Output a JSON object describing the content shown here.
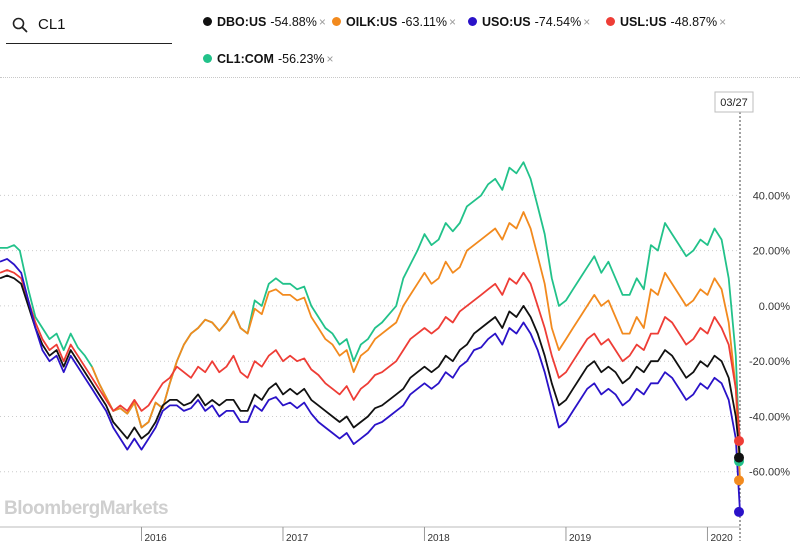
{
  "search": {
    "value": "CL1"
  },
  "legend": [
    {
      "ticker": "DBO:US",
      "change": "-54.88%",
      "close": "×",
      "color": "#111111"
    },
    {
      "ticker": "OILK:US",
      "change": "-63.11%",
      "close": "×",
      "color": "#f28a1e"
    },
    {
      "ticker": "USO:US",
      "change": "-74.54%",
      "close": "×",
      "color": "#2a12c8"
    },
    {
      "ticker": "USL:US",
      "change": "-48.87%",
      "close": "×",
      "color": "#ee3d36"
    },
    {
      "ticker": "CL1:COM",
      "change": "-56.23%",
      "close": "×",
      "color": "#22c28a"
    }
  ],
  "watermark": "BloombergMarkets",
  "chart_data": {
    "type": "line",
    "date_marker": "03/27",
    "ylim": [
      -80,
      68
    ],
    "yticks": [
      40,
      20,
      0,
      -20,
      -40,
      -60
    ],
    "ytick_labels": [
      "40.00%",
      "20.00%",
      "0.00%",
      "-20.00%",
      "-40.00%",
      "-60.00%"
    ],
    "xlim": [
      2015.0,
      2020.23
    ],
    "xticks": [
      2016,
      2017,
      2018,
      2019,
      2020
    ],
    "xtick_labels": [
      "2016",
      "2017",
      "2018",
      "2019",
      "2020"
    ],
    "grid": true,
    "series": [
      {
        "name": "CL1:COM",
        "color": "#22c28a",
        "final": -56.23,
        "x": [
          2015.0,
          2015.05,
          2015.1,
          2015.14,
          2015.2,
          2015.25,
          2015.3,
          2015.35,
          2015.4,
          2015.45,
          2015.5,
          2015.55,
          2015.6,
          2015.65,
          2015.7,
          2015.75,
          2015.8,
          2015.85,
          2015.9,
          2015.95,
          2016.0,
          2016.05,
          2016.1,
          2016.15,
          2016.2,
          2016.25,
          2016.3,
          2016.35,
          2016.4,
          2016.45,
          2016.5,
          2016.55,
          2016.6,
          2016.65,
          2016.7,
          2016.75,
          2016.8,
          2016.85,
          2016.9,
          2016.95,
          2017.0,
          2017.05,
          2017.1,
          2017.15,
          2017.2,
          2017.25,
          2017.3,
          2017.35,
          2017.4,
          2017.45,
          2017.5,
          2017.55,
          2017.6,
          2017.65,
          2017.7,
          2017.75,
          2017.8,
          2017.85,
          2017.9,
          2017.95,
          2018.0,
          2018.05,
          2018.1,
          2018.15,
          2018.2,
          2018.25,
          2018.3,
          2018.35,
          2018.4,
          2018.45,
          2018.5,
          2018.55,
          2018.6,
          2018.65,
          2018.7,
          2018.75,
          2018.8,
          2018.85,
          2018.9,
          2018.95,
          2019.0,
          2019.05,
          2019.1,
          2019.15,
          2019.2,
          2019.25,
          2019.3,
          2019.35,
          2019.4,
          2019.45,
          2019.5,
          2019.55,
          2019.6,
          2019.65,
          2019.7,
          2019.75,
          2019.8,
          2019.85,
          2019.9,
          2019.95,
          2020.0,
          2020.05,
          2020.1,
          2020.15,
          2020.2,
          2020.23
        ],
        "y": [
          21,
          21,
          22,
          20,
          6,
          -4,
          -8,
          -12,
          -10,
          -16,
          -10,
          -15,
          -18,
          -22,
          -28,
          -33,
          -38,
          -37,
          -39,
          -35,
          -44,
          -42,
          -35,
          -37,
          -28,
          -20,
          -14,
          -10,
          -8,
          -5,
          -6,
          -9,
          -6,
          -2,
          -8,
          -10,
          2,
          0,
          8,
          10,
          8,
          8,
          6,
          7,
          0,
          -4,
          -8,
          -10,
          -14,
          -12,
          -20,
          -14,
          -12,
          -8,
          -6,
          -3,
          0,
          10,
          15,
          20,
          26,
          22,
          24,
          30,
          27,
          30,
          36,
          38,
          40,
          44,
          46,
          42,
          50,
          48,
          52,
          46,
          36,
          26,
          10,
          0,
          2,
          6,
          10,
          14,
          18,
          12,
          16,
          10,
          4,
          4,
          10,
          6,
          22,
          20,
          30,
          26,
          22,
          18,
          20,
          24,
          22,
          28,
          24,
          10,
          -18,
          -56.23
        ]
      },
      {
        "name": "OILK:US",
        "color": "#f28a1e",
        "final": -63.11,
        "x": [
          2015.65,
          2015.7,
          2015.75,
          2015.8,
          2015.85,
          2015.9,
          2015.95,
          2016.0,
          2016.05,
          2016.1,
          2016.15,
          2016.2,
          2016.25,
          2016.3,
          2016.35,
          2016.4,
          2016.45,
          2016.5,
          2016.55,
          2016.6,
          2016.65,
          2016.7,
          2016.75,
          2016.8,
          2016.85,
          2016.9,
          2016.95,
          2017.0,
          2017.05,
          2017.1,
          2017.15,
          2017.2,
          2017.25,
          2017.3,
          2017.35,
          2017.4,
          2017.45,
          2017.5,
          2017.55,
          2017.6,
          2017.65,
          2017.7,
          2017.75,
          2017.8,
          2017.85,
          2017.9,
          2017.95,
          2018.0,
          2018.05,
          2018.1,
          2018.15,
          2018.2,
          2018.25,
          2018.3,
          2018.35,
          2018.4,
          2018.45,
          2018.5,
          2018.55,
          2018.6,
          2018.65,
          2018.7,
          2018.75,
          2018.8,
          2018.85,
          2018.9,
          2018.95,
          2019.0,
          2019.05,
          2019.1,
          2019.15,
          2019.2,
          2019.25,
          2019.3,
          2019.35,
          2019.4,
          2019.45,
          2019.5,
          2019.55,
          2019.6,
          2019.65,
          2019.7,
          2019.75,
          2019.8,
          2019.85,
          2019.9,
          2019.95,
          2020.0,
          2020.05,
          2020.1,
          2020.15,
          2020.2,
          2020.23
        ],
        "y": [
          -22,
          -28,
          -33,
          -38,
          -37,
          -39,
          -35,
          -44,
          -42,
          -35,
          -37,
          -28,
          -20,
          -14,
          -10,
          -8,
          -5,
          -6,
          -9,
          -6,
          -2,
          -8,
          -10,
          -1,
          -3,
          5,
          6,
          4,
          4,
          2,
          3,
          -4,
          -8,
          -12,
          -14,
          -18,
          -16,
          -24,
          -18,
          -16,
          -12,
          -10,
          -8,
          -6,
          0,
          4,
          8,
          12,
          8,
          10,
          16,
          12,
          14,
          20,
          22,
          24,
          26,
          28,
          24,
          30,
          28,
          34,
          28,
          18,
          8,
          -8,
          -16,
          -12,
          -8,
          -4,
          0,
          4,
          0,
          2,
          -4,
          -10,
          -10,
          -4,
          -8,
          6,
          4,
          12,
          8,
          4,
          0,
          2,
          6,
          4,
          10,
          6,
          -6,
          -30,
          -63.11
        ]
      },
      {
        "name": "USL:US",
        "color": "#ee3d36",
        "final": -48.87,
        "x": [
          2015.0,
          2015.05,
          2015.1,
          2015.15,
          2015.2,
          2015.25,
          2015.3,
          2015.35,
          2015.4,
          2015.45,
          2015.5,
          2015.55,
          2015.6,
          2015.65,
          2015.7,
          2015.75,
          2015.8,
          2015.85,
          2015.9,
          2015.95,
          2016.0,
          2016.05,
          2016.1,
          2016.15,
          2016.2,
          2016.25,
          2016.3,
          2016.35,
          2016.4,
          2016.45,
          2016.5,
          2016.55,
          2016.6,
          2016.65,
          2016.7,
          2016.75,
          2016.8,
          2016.85,
          2016.9,
          2016.95,
          2017.0,
          2017.05,
          2017.1,
          2017.15,
          2017.2,
          2017.25,
          2017.3,
          2017.35,
          2017.4,
          2017.45,
          2017.5,
          2017.55,
          2017.6,
          2017.65,
          2017.7,
          2017.75,
          2017.8,
          2017.85,
          2017.9,
          2017.95,
          2018.0,
          2018.05,
          2018.1,
          2018.15,
          2018.2,
          2018.25,
          2018.3,
          2018.35,
          2018.4,
          2018.45,
          2018.5,
          2018.55,
          2018.6,
          2018.65,
          2018.7,
          2018.75,
          2018.8,
          2018.85,
          2018.9,
          2018.95,
          2019.0,
          2019.05,
          2019.1,
          2019.15,
          2019.2,
          2019.25,
          2019.3,
          2019.35,
          2019.4,
          2019.45,
          2019.5,
          2019.55,
          2019.6,
          2019.65,
          2019.7,
          2019.75,
          2019.8,
          2019.85,
          2019.9,
          2019.95,
          2020.0,
          2020.05,
          2020.1,
          2020.15,
          2020.2,
          2020.23
        ],
        "y": [
          12,
          13,
          12,
          10,
          2,
          -6,
          -12,
          -16,
          -14,
          -20,
          -14,
          -18,
          -22,
          -26,
          -30,
          -34,
          -38,
          -36,
          -38,
          -34,
          -38,
          -36,
          -32,
          -28,
          -26,
          -22,
          -24,
          -26,
          -22,
          -24,
          -20,
          -24,
          -22,
          -18,
          -24,
          -26,
          -20,
          -22,
          -18,
          -16,
          -20,
          -18,
          -20,
          -19,
          -23,
          -25,
          -28,
          -30,
          -32,
          -29,
          -34,
          -30,
          -28,
          -25,
          -24,
          -22,
          -20,
          -16,
          -12,
          -10,
          -8,
          -10,
          -8,
          -4,
          -6,
          -2,
          0,
          2,
          4,
          6,
          8,
          4,
          10,
          8,
          12,
          8,
          0,
          -8,
          -18,
          -26,
          -24,
          -20,
          -16,
          -12,
          -10,
          -14,
          -12,
          -16,
          -20,
          -18,
          -14,
          -16,
          -10,
          -10,
          -4,
          -6,
          -10,
          -14,
          -12,
          -8,
          -10,
          -4,
          -8,
          -14,
          -30,
          -48.87
        ]
      },
      {
        "name": "DBO:US",
        "color": "#111111",
        "final": -54.88,
        "x": [
          2015.0,
          2015.05,
          2015.1,
          2015.15,
          2015.2,
          2015.25,
          2015.3,
          2015.35,
          2015.4,
          2015.45,
          2015.5,
          2015.55,
          2015.6,
          2015.65,
          2015.7,
          2015.75,
          2015.8,
          2015.85,
          2015.9,
          2015.95,
          2016.0,
          2016.05,
          2016.1,
          2016.15,
          2016.2,
          2016.25,
          2016.3,
          2016.35,
          2016.4,
          2016.45,
          2016.5,
          2016.55,
          2016.6,
          2016.65,
          2016.7,
          2016.75,
          2016.8,
          2016.85,
          2016.9,
          2016.95,
          2017.0,
          2017.05,
          2017.1,
          2017.15,
          2017.2,
          2017.25,
          2017.3,
          2017.35,
          2017.4,
          2017.45,
          2017.5,
          2017.55,
          2017.6,
          2017.65,
          2017.7,
          2017.75,
          2017.8,
          2017.85,
          2017.9,
          2017.95,
          2018.0,
          2018.05,
          2018.1,
          2018.15,
          2018.2,
          2018.25,
          2018.3,
          2018.35,
          2018.4,
          2018.45,
          2018.5,
          2018.55,
          2018.6,
          2018.65,
          2018.7,
          2018.75,
          2018.8,
          2018.85,
          2018.9,
          2018.95,
          2019.0,
          2019.05,
          2019.1,
          2019.15,
          2019.2,
          2019.25,
          2019.3,
          2019.35,
          2019.4,
          2019.45,
          2019.5,
          2019.55,
          2019.6,
          2019.65,
          2019.7,
          2019.75,
          2019.8,
          2019.85,
          2019.9,
          2019.95,
          2020.0,
          2020.05,
          2020.1,
          2020.15,
          2020.2,
          2020.23
        ],
        "y": [
          10,
          11,
          10,
          8,
          0,
          -8,
          -14,
          -18,
          -16,
          -22,
          -16,
          -20,
          -24,
          -28,
          -32,
          -36,
          -42,
          -45,
          -48,
          -44,
          -48,
          -46,
          -42,
          -36,
          -34,
          -34,
          -36,
          -35,
          -32,
          -36,
          -34,
          -36,
          -34,
          -34,
          -38,
          -38,
          -32,
          -34,
          -30,
          -28,
          -32,
          -30,
          -32,
          -30,
          -34,
          -36,
          -38,
          -40,
          -42,
          -40,
          -44,
          -42,
          -40,
          -37,
          -36,
          -34,
          -32,
          -30,
          -26,
          -24,
          -22,
          -24,
          -22,
          -18,
          -20,
          -16,
          -14,
          -10,
          -8,
          -6,
          -4,
          -8,
          -2,
          -4,
          0,
          -4,
          -10,
          -18,
          -28,
          -36,
          -34,
          -30,
          -26,
          -22,
          -20,
          -24,
          -22,
          -24,
          -28,
          -26,
          -22,
          -24,
          -20,
          -20,
          -16,
          -18,
          -22,
          -26,
          -24,
          -20,
          -22,
          -18,
          -20,
          -26,
          -40,
          -54.88
        ]
      },
      {
        "name": "USO:US",
        "color": "#2a12c8",
        "final": -74.54,
        "x": [
          2015.0,
          2015.05,
          2015.1,
          2015.15,
          2015.2,
          2015.25,
          2015.3,
          2015.35,
          2015.4,
          2015.45,
          2015.5,
          2015.55,
          2015.6,
          2015.65,
          2015.7,
          2015.75,
          2015.8,
          2015.85,
          2015.9,
          2015.95,
          2016.0,
          2016.05,
          2016.1,
          2016.15,
          2016.2,
          2016.25,
          2016.3,
          2016.35,
          2016.4,
          2016.45,
          2016.5,
          2016.55,
          2016.6,
          2016.65,
          2016.7,
          2016.75,
          2016.8,
          2016.85,
          2016.9,
          2016.95,
          2017.0,
          2017.05,
          2017.1,
          2017.15,
          2017.2,
          2017.25,
          2017.3,
          2017.35,
          2017.4,
          2017.45,
          2017.5,
          2017.55,
          2017.6,
          2017.65,
          2017.7,
          2017.75,
          2017.8,
          2017.85,
          2017.9,
          2017.95,
          2018.0,
          2018.05,
          2018.1,
          2018.15,
          2018.2,
          2018.25,
          2018.3,
          2018.35,
          2018.4,
          2018.45,
          2018.5,
          2018.55,
          2018.6,
          2018.65,
          2018.7,
          2018.75,
          2018.8,
          2018.85,
          2018.9,
          2018.95,
          2019.0,
          2019.05,
          2019.1,
          2019.15,
          2019.2,
          2019.25,
          2019.3,
          2019.35,
          2019.4,
          2019.45,
          2019.5,
          2019.55,
          2019.6,
          2019.65,
          2019.7,
          2019.75,
          2019.8,
          2019.85,
          2019.9,
          2019.95,
          2020.0,
          2020.05,
          2020.1,
          2020.15,
          2020.2,
          2020.23
        ],
        "y": [
          16,
          17,
          15,
          12,
          2,
          -8,
          -16,
          -20,
          -18,
          -24,
          -18,
          -22,
          -26,
          -30,
          -34,
          -38,
          -44,
          -48,
          -52,
          -48,
          -52,
          -48,
          -44,
          -38,
          -36,
          -36,
          -38,
          -37,
          -34,
          -38,
          -36,
          -40,
          -38,
          -38,
          -42,
          -42,
          -36,
          -38,
          -34,
          -33,
          -36,
          -35,
          -37,
          -35,
          -39,
          -42,
          -44,
          -46,
          -48,
          -46,
          -50,
          -48,
          -46,
          -43,
          -42,
          -40,
          -38,
          -36,
          -32,
          -30,
          -28,
          -30,
          -28,
          -24,
          -26,
          -22,
          -20,
          -16,
          -15,
          -12,
          -10,
          -14,
          -8,
          -10,
          -6,
          -10,
          -16,
          -24,
          -34,
          -44,
          -42,
          -38,
          -34,
          -30,
          -28,
          -32,
          -30,
          -32,
          -36,
          -34,
          -30,
          -32,
          -28,
          -28,
          -24,
          -26,
          -30,
          -34,
          -32,
          -28,
          -30,
          -26,
          -28,
          -34,
          -48,
          -74.54
        ]
      }
    ]
  }
}
